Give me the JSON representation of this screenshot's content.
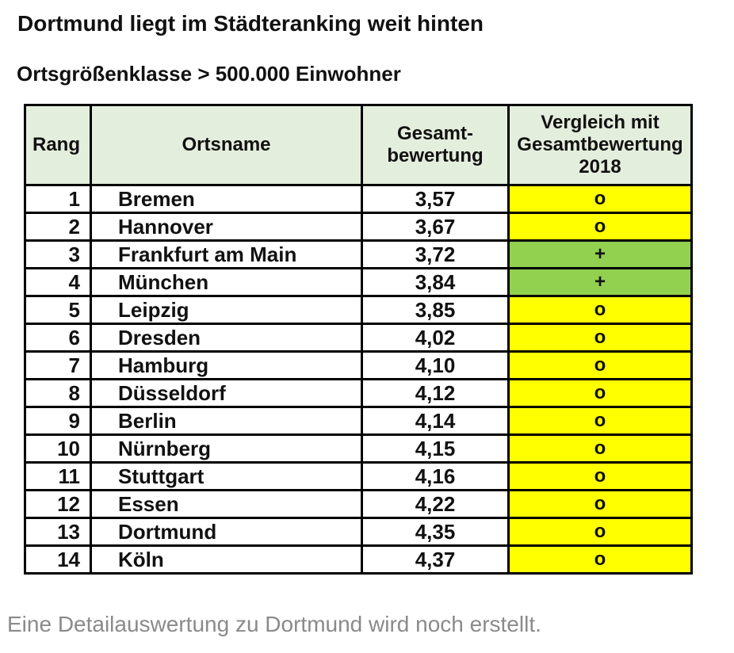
{
  "title": "Dortmund liegt im Städteranking weit hinten",
  "subtitle": "Ortsgrößenklasse > 500.000 Einwohner",
  "footer_note": "Eine Detailauswertung zu Dortmund wird noch erstellt.",
  "colors": {
    "header_bg": "#E4EEDD",
    "neutral_bg": "#FFFF00",
    "improved_bg": "#92D050",
    "border": "#000000",
    "footer_text": "#8A8A8A"
  },
  "table": {
    "columns": [
      {
        "key": "rank",
        "label": "Rang"
      },
      {
        "key": "city",
        "label": "Ortsname"
      },
      {
        "key": "rating",
        "label": "Gesamt-\nbewertung"
      },
      {
        "key": "comparison",
        "label": "Vergleich mit\nGesamtbewertung\n2018"
      }
    ],
    "rows": [
      {
        "rank": "1",
        "city": "Bremen",
        "rating": "3,57",
        "comparison": "o"
      },
      {
        "rank": "2",
        "city": "Hannover",
        "rating": "3,67",
        "comparison": "o"
      },
      {
        "rank": "3",
        "city": "Frankfurt am Main",
        "rating": "3,72",
        "comparison": "+"
      },
      {
        "rank": "4",
        "city": "München",
        "rating": "3,84",
        "comparison": "+"
      },
      {
        "rank": "5",
        "city": "Leipzig",
        "rating": "3,85",
        "comparison": "o"
      },
      {
        "rank": "6",
        "city": "Dresden",
        "rating": "4,02",
        "comparison": "o"
      },
      {
        "rank": "7",
        "city": "Hamburg",
        "rating": "4,10",
        "comparison": "o"
      },
      {
        "rank": "8",
        "city": "Düsseldorf",
        "rating": "4,12",
        "comparison": "o"
      },
      {
        "rank": "9",
        "city": "Berlin",
        "rating": "4,14",
        "comparison": "o"
      },
      {
        "rank": "10",
        "city": "Nürnberg",
        "rating": "4,15",
        "comparison": "o"
      },
      {
        "rank": "11",
        "city": "Stuttgart",
        "rating": "4,16",
        "comparison": "o"
      },
      {
        "rank": "12",
        "city": "Essen",
        "rating": "4,22",
        "comparison": "o"
      },
      {
        "rank": "13",
        "city": "Dortmund",
        "rating": "4,35",
        "comparison": "o"
      },
      {
        "rank": "14",
        "city": "Köln",
        "rating": "4,37",
        "comparison": "o"
      }
    ]
  }
}
